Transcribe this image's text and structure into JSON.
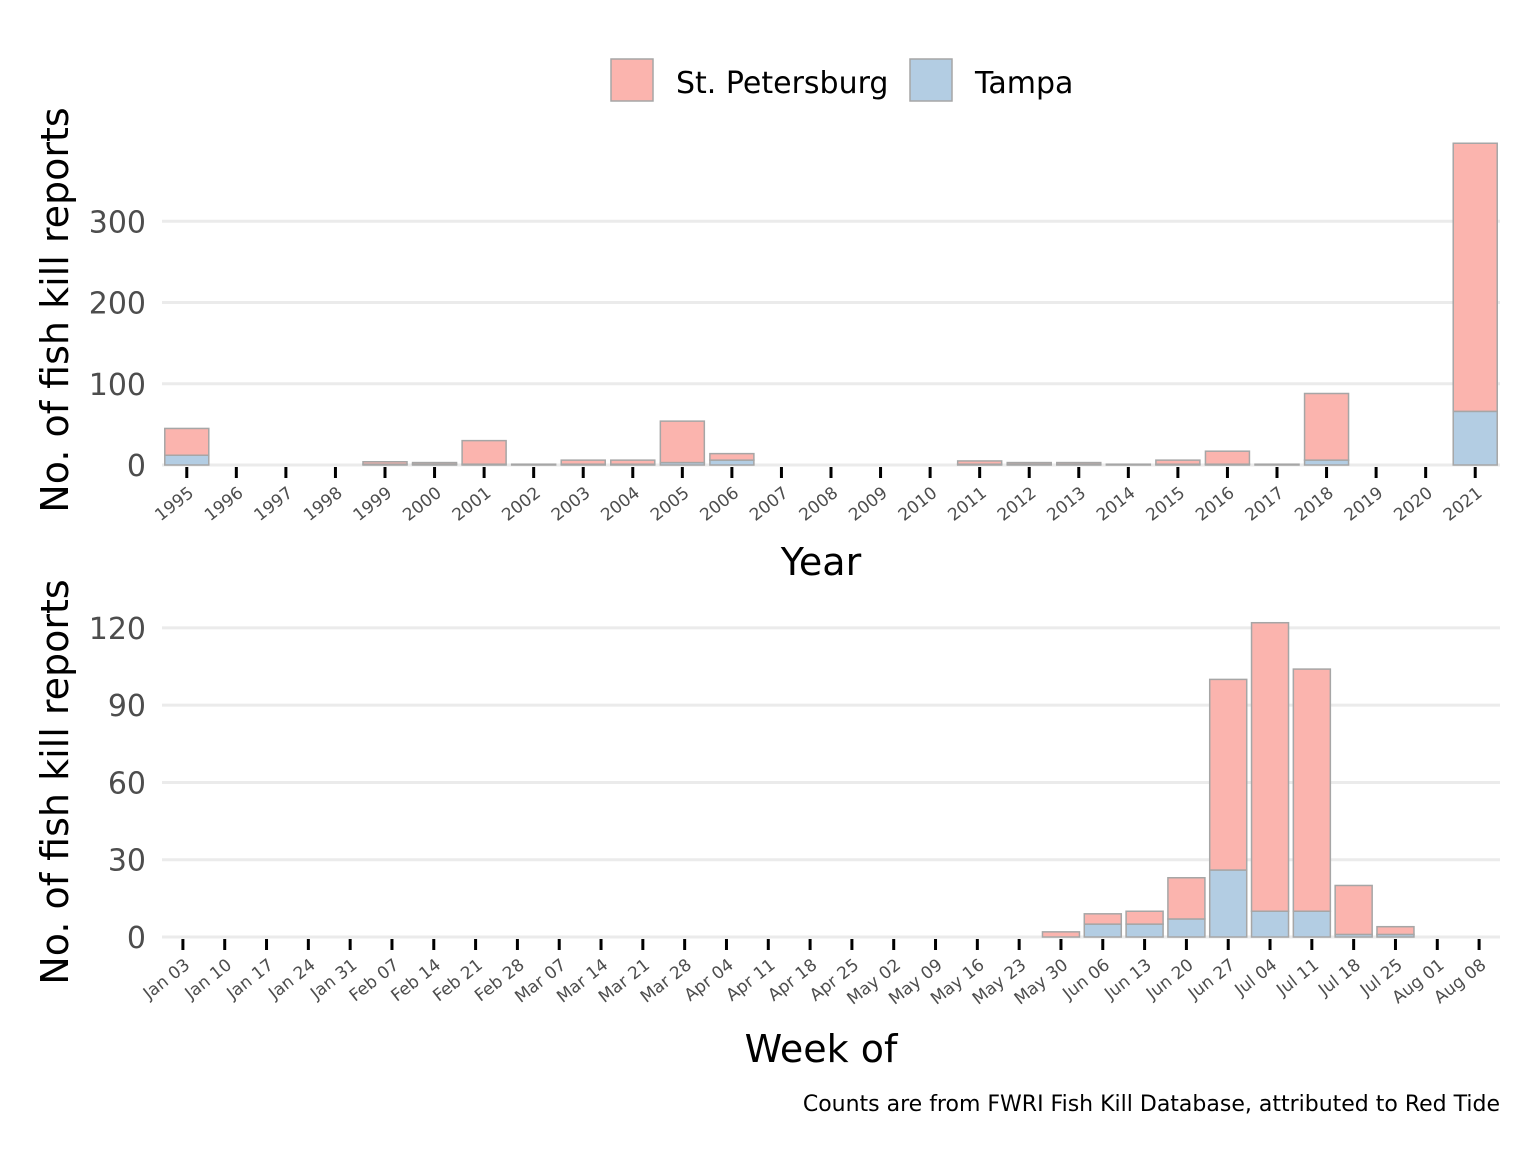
{
  "colors": {
    "st_petersburg": "#fbb4ae",
    "tampa": "#b3cde3",
    "bar_outline": "#a6a6a6"
  },
  "legend": {
    "items": [
      "St. Petersburg",
      "Tampa"
    ],
    "position": "top"
  },
  "caption": "Counts are from FWRI Fish Kill Database, attributed to Red Tide",
  "chart_data": [
    {
      "type": "bar",
      "stacked": true,
      "xlabel": "Year",
      "ylabel": "No. of fish kill reports",
      "ylim": [
        0,
        400
      ],
      "yticks": [
        0,
        100,
        200,
        300
      ],
      "categories": [
        "1995",
        "1996",
        "1997",
        "1998",
        "1999",
        "2000",
        "2001",
        "2002",
        "2003",
        "2004",
        "2005",
        "2006",
        "2007",
        "2008",
        "2009",
        "2010",
        "2011",
        "2012",
        "2013",
        "2014",
        "2015",
        "2016",
        "2017",
        "2018",
        "2019",
        "2020",
        "2021"
      ],
      "series": [
        {
          "name": "Tampa",
          "values": [
            12,
            0,
            0,
            0,
            1,
            1,
            1,
            0,
            1,
            1,
            3,
            6,
            0,
            0,
            0,
            0,
            1,
            1,
            1,
            0,
            1,
            1,
            0,
            6,
            0,
            0,
            66
          ]
        },
        {
          "name": "St. Petersburg",
          "values": [
            33,
            0,
            0,
            0,
            3,
            2,
            29,
            1,
            5,
            5,
            51,
            8,
            0,
            0,
            0,
            0,
            4,
            2,
            2,
            1,
            5,
            16,
            1,
            82,
            0,
            0,
            330
          ]
        }
      ]
    },
    {
      "type": "bar",
      "stacked": true,
      "xlabel": "Week of",
      "ylabel": "No. of fish kill reports",
      "ylim": [
        0,
        125
      ],
      "yticks": [
        0,
        30,
        60,
        90,
        120
      ],
      "categories": [
        "Jan 03",
        "Jan 10",
        "Jan 17",
        "Jan 24",
        "Jan 31",
        "Feb 07",
        "Feb 14",
        "Feb 21",
        "Feb 28",
        "Mar 07",
        "Mar 14",
        "Mar 21",
        "Mar 28",
        "Apr 04",
        "Apr 11",
        "Apr 18",
        "Apr 25",
        "May 02",
        "May 09",
        "May 16",
        "May 23",
        "May 30",
        "Jun 06",
        "Jun 13",
        "Jun 20",
        "Jun 27",
        "Jul 04",
        "Jul 11",
        "Jul 18",
        "Jul 25",
        "Aug 01",
        "Aug 08"
      ],
      "series": [
        {
          "name": "Tampa",
          "values": [
            0,
            0,
            0,
            0,
            0,
            0,
            0,
            0,
            0,
            0,
            0,
            0,
            0,
            0,
            0,
            0,
            0,
            0,
            0,
            0,
            0,
            0,
            5,
            5,
            7,
            26,
            10,
            10,
            1,
            1,
            0,
            0
          ]
        },
        {
          "name": "St. Petersburg",
          "values": [
            0,
            0,
            0,
            0,
            0,
            0,
            0,
            0,
            0,
            0,
            0,
            0,
            0,
            0,
            0,
            0,
            0,
            0,
            0,
            0,
            0,
            2,
            4,
            5,
            16,
            74,
            112,
            94,
            19,
            3,
            0,
            0
          ]
        }
      ]
    }
  ]
}
